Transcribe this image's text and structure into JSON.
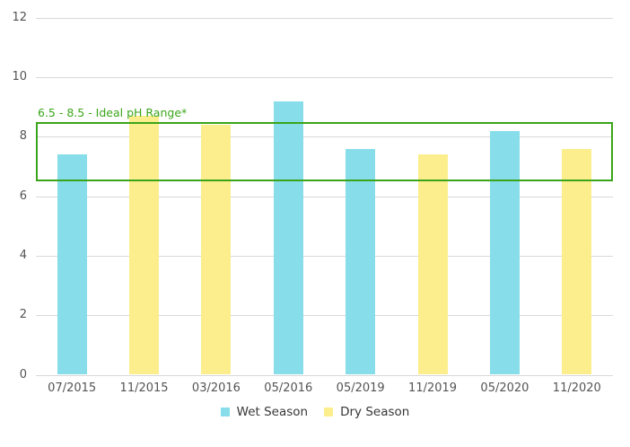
{
  "chart_data": {
    "type": "bar",
    "title": "",
    "xlabel": "",
    "ylabel": "",
    "categories": [
      "07/2015",
      "11/2015",
      "03/2016",
      "05/2016",
      "05/2019",
      "11/2019",
      "05/2020",
      "11/2020"
    ],
    "series": [
      {
        "name": "Wet Season",
        "color": "#87DEEA",
        "values": [
          7.4,
          null,
          null,
          9.2,
          7.6,
          null,
          8.2,
          null
        ]
      },
      {
        "name": "Dry Season",
        "color": "#FCEE8C",
        "values": [
          null,
          8.7,
          8.4,
          null,
          null,
          7.4,
          null,
          7.6
        ]
      }
    ],
    "ylim": [
      0,
      12
    ],
    "yticks": [
      0,
      2,
      4,
      6,
      8,
      10,
      12
    ],
    "grid": true,
    "legend_position": "bottom",
    "annotation": {
      "label": "6.5 - 8.5 - Ideal pH Range*",
      "from": 6.5,
      "to": 8.5,
      "color": "#3AA51A"
    }
  },
  "colors": {
    "background": "#FFFFFF",
    "grid": "#D9D9D9",
    "axis_text": "#545454",
    "legend_text": "#373737"
  }
}
